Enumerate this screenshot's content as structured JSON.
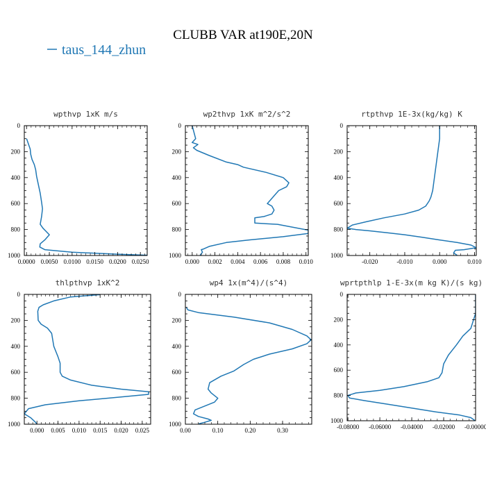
{
  "figure": {
    "title": "CLUBB VAR at190E,20N",
    "legend": {
      "label": "taus_144_zhun",
      "color": "#1f77b4"
    }
  },
  "chart_data": [
    {
      "type": "line",
      "title": "wpthvp   1xK m/s",
      "xlim": [
        -0.0005,
        0.0265
      ],
      "ylim": [
        1000,
        0
      ],
      "xticks": [
        0.0,
        0.005,
        0.01,
        0.015,
        0.02,
        0.025
      ],
      "xticklabels": [
        "0.0000",
        "0.0050",
        "0.0100",
        "0.0150",
        "0.0200",
        "0.0250"
      ],
      "yticks": [
        0,
        200,
        400,
        600,
        800,
        1000
      ],
      "yticklabels": [
        "0",
        "200",
        "400",
        "600",
        "800",
        "1000"
      ],
      "series": [
        {
          "color": "#1f77b4",
          "x": [
            0.0,
            0.0004,
            0.0008,
            0.0009,
            0.0012,
            0.0017,
            0.002,
            0.0022,
            0.0025,
            0.003,
            0.0033,
            0.0035,
            0.0033,
            0.003,
            0.0036,
            0.005,
            0.004,
            0.003,
            0.0029,
            0.004,
            0.01,
            0.02,
            0.0265
          ],
          "y": [
            100,
            140,
            180,
            220,
            260,
            300,
            340,
            390,
            440,
            520,
            590,
            640,
            700,
            760,
            790,
            840,
            880,
            910,
            935,
            955,
            975,
            990,
            998
          ]
        }
      ]
    },
    {
      "type": "line",
      "title": "wp2thvp   1xK m^2/s^2",
      "xlim": [
        -0.0006,
        0.0102
      ],
      "ylim": [
        1000,
        0
      ],
      "xticks": [
        0.0,
        0.002,
        0.004,
        0.006,
        0.008,
        0.01
      ],
      "xticklabels": [
        "0.000",
        "0.002",
        "0.004",
        "0.006",
        "0.008",
        "0.010"
      ],
      "yticks": [
        0,
        200,
        400,
        600,
        800,
        1000
      ],
      "yticklabels": [
        "0",
        "200",
        "400",
        "600",
        "800",
        "1000"
      ],
      "series": [
        {
          "color": "#1f77b4",
          "x": [
            0.0,
            0.0003,
            0.0,
            0.0005,
            0.0001,
            0.0004,
            0.0015,
            0.003,
            0.004,
            0.0045,
            0.0065,
            0.008,
            0.0085,
            0.0083,
            0.0076,
            0.0072,
            0.0068,
            0.0066,
            0.007,
            0.0072,
            0.007,
            0.0063,
            0.0055,
            0.0055,
            0.0075,
            0.0102,
            0.0102,
            0.008,
            0.005,
            0.003,
            0.0015,
            0.001,
            0.0008,
            0.0009,
            0.0007
          ],
          "y": [
            0,
            100,
            130,
            145,
            170,
            190,
            230,
            280,
            300,
            320,
            360,
            400,
            440,
            470,
            500,
            540,
            580,
            600,
            620,
            650,
            680,
            700,
            710,
            750,
            760,
            805,
            830,
            855,
            880,
            900,
            930,
            950,
            955,
            975,
            998
          ]
        }
      ]
    },
    {
      "type": "line",
      "title": "rtpthvp   1E-3x(kg/kg) K",
      "xlim": [
        -0.0265,
        0.0105
      ],
      "ylim": [
        1000,
        0
      ],
      "xticks": [
        -0.02,
        -0.01,
        0.0,
        0.01
      ],
      "xticklabels": [
        "-0.020",
        "-0.010",
        "0.000",
        "0.010"
      ],
      "yticks": [
        0,
        200,
        400,
        600,
        800,
        1000
      ],
      "yticklabels": [
        "0",
        "200",
        "400",
        "600",
        "800",
        "1000"
      ],
      "series": [
        {
          "color": "#1f77b4",
          "x": [
            0.0,
            0.0,
            -0.0005,
            -0.001,
            -0.0015,
            -0.002,
            -0.0025,
            -0.003,
            -0.004,
            -0.006,
            -0.01,
            -0.016,
            -0.021,
            -0.025,
            -0.0265,
            -0.024,
            -0.02,
            -0.015,
            -0.01,
            -0.005,
            0.0,
            0.005,
            0.009,
            0.0105,
            0.007,
            0.0045,
            0.004,
            0.005
          ],
          "y": [
            0,
            100,
            200,
            300,
            400,
            500,
            550,
            580,
            620,
            650,
            680,
            710,
            740,
            765,
            790,
            800,
            810,
            825,
            840,
            860,
            880,
            900,
            920,
            940,
            955,
            960,
            980,
            998
          ]
        }
      ]
    },
    {
      "type": "line",
      "title": "thlpthvp   1xK^2",
      "xlim": [
        -0.003,
        0.027
      ],
      "ylim": [
        1000,
        0
      ],
      "xticks": [
        0.0,
        0.005,
        0.01,
        0.015,
        0.02,
        0.025
      ],
      "xticklabels": [
        "0.000",
        "0.005",
        "0.010",
        "0.015",
        "0.020",
        "0.025"
      ],
      "yticks": [
        0,
        200,
        400,
        600,
        800,
        1000
      ],
      "yticklabels": [
        "0",
        "200",
        "400",
        "600",
        "800",
        "1000"
      ],
      "series": [
        {
          "color": "#1f77b4",
          "x": [
            0.015,
            0.008,
            0.004,
            0.0015,
            0.0005,
            0.0002,
            0.0003,
            0.001,
            0.0025,
            0.0035,
            0.004,
            0.005,
            0.0055,
            0.0055,
            0.006,
            0.008,
            0.013,
            0.02,
            0.0265,
            0.0265,
            0.02,
            0.01,
            0.002,
            -0.002,
            -0.003,
            -0.0015,
            -0.0005,
            0.0
          ],
          "y": [
            2,
            20,
            50,
            80,
            100,
            130,
            200,
            230,
            260,
            300,
            400,
            480,
            530,
            600,
            630,
            660,
            700,
            730,
            750,
            770,
            790,
            820,
            850,
            880,
            920,
            950,
            980,
            998
          ]
        }
      ]
    },
    {
      "type": "line",
      "title": "wp4   1x(m^4)/(s^4)",
      "xlim": [
        0.0,
        0.39
      ],
      "ylim": [
        1000,
        0
      ],
      "xticks": [
        0.0,
        0.1,
        0.2,
        0.3
      ],
      "xticklabels": [
        "0.00",
        "0.10",
        "0.20",
        "0.30"
      ],
      "yticks": [
        0,
        200,
        400,
        600,
        800,
        1000
      ],
      "yticklabels": [
        "0",
        "200",
        "400",
        "600",
        "800",
        "1000"
      ],
      "series": [
        {
          "color": "#1f77b4",
          "x": [
            0.003,
            0.008,
            0.04,
            0.15,
            0.26,
            0.33,
            0.375,
            0.388,
            0.375,
            0.33,
            0.26,
            0.21,
            0.18,
            0.15,
            0.11,
            0.075,
            0.07,
            0.08,
            0.1,
            0.09,
            0.06,
            0.03,
            0.025,
            0.04,
            0.07,
            0.08,
            0.06,
            0.04
          ],
          "y": [
            100,
            120,
            140,
            175,
            220,
            270,
            320,
            350,
            380,
            420,
            460,
            500,
            540,
            590,
            630,
            680,
            730,
            760,
            800,
            830,
            860,
            890,
            920,
            940,
            960,
            970,
            985,
            998
          ]
        }
      ]
    },
    {
      "type": "line",
      "title": "wprtpthlp   1-E-3x(m kg K)/(s kg)",
      "xlim": [
        -0.0805,
        0.0
      ],
      "ylim": [
        1000,
        0
      ],
      "xticks": [
        -0.08,
        -0.06,
        -0.04,
        -0.02,
        0.0
      ],
      "xticklabels": [
        "-0.08000",
        "-0.06000",
        "-0.04000",
        "-0.02000",
        "-0.00000"
      ],
      "yticks": [
        0,
        200,
        400,
        600,
        800,
        1000
      ],
      "yticklabels": [
        "0",
        "200",
        "400",
        "600",
        "800",
        "1000"
      ],
      "series": [
        {
          "color": "#1f77b4",
          "x": [
            0.0,
            0.0,
            -0.003,
            -0.008,
            -0.012,
            -0.017,
            -0.02,
            -0.021,
            -0.023,
            -0.03,
            -0.045,
            -0.06,
            -0.075,
            -0.08,
            -0.079,
            -0.07,
            -0.055,
            -0.04,
            -0.025,
            -0.01,
            -0.003,
            -0.0005
          ],
          "y": [
            0,
            150,
            270,
            330,
            400,
            480,
            550,
            620,
            660,
            690,
            730,
            760,
            780,
            800,
            820,
            840,
            870,
            900,
            930,
            955,
            975,
            998
          ]
        }
      ]
    }
  ]
}
